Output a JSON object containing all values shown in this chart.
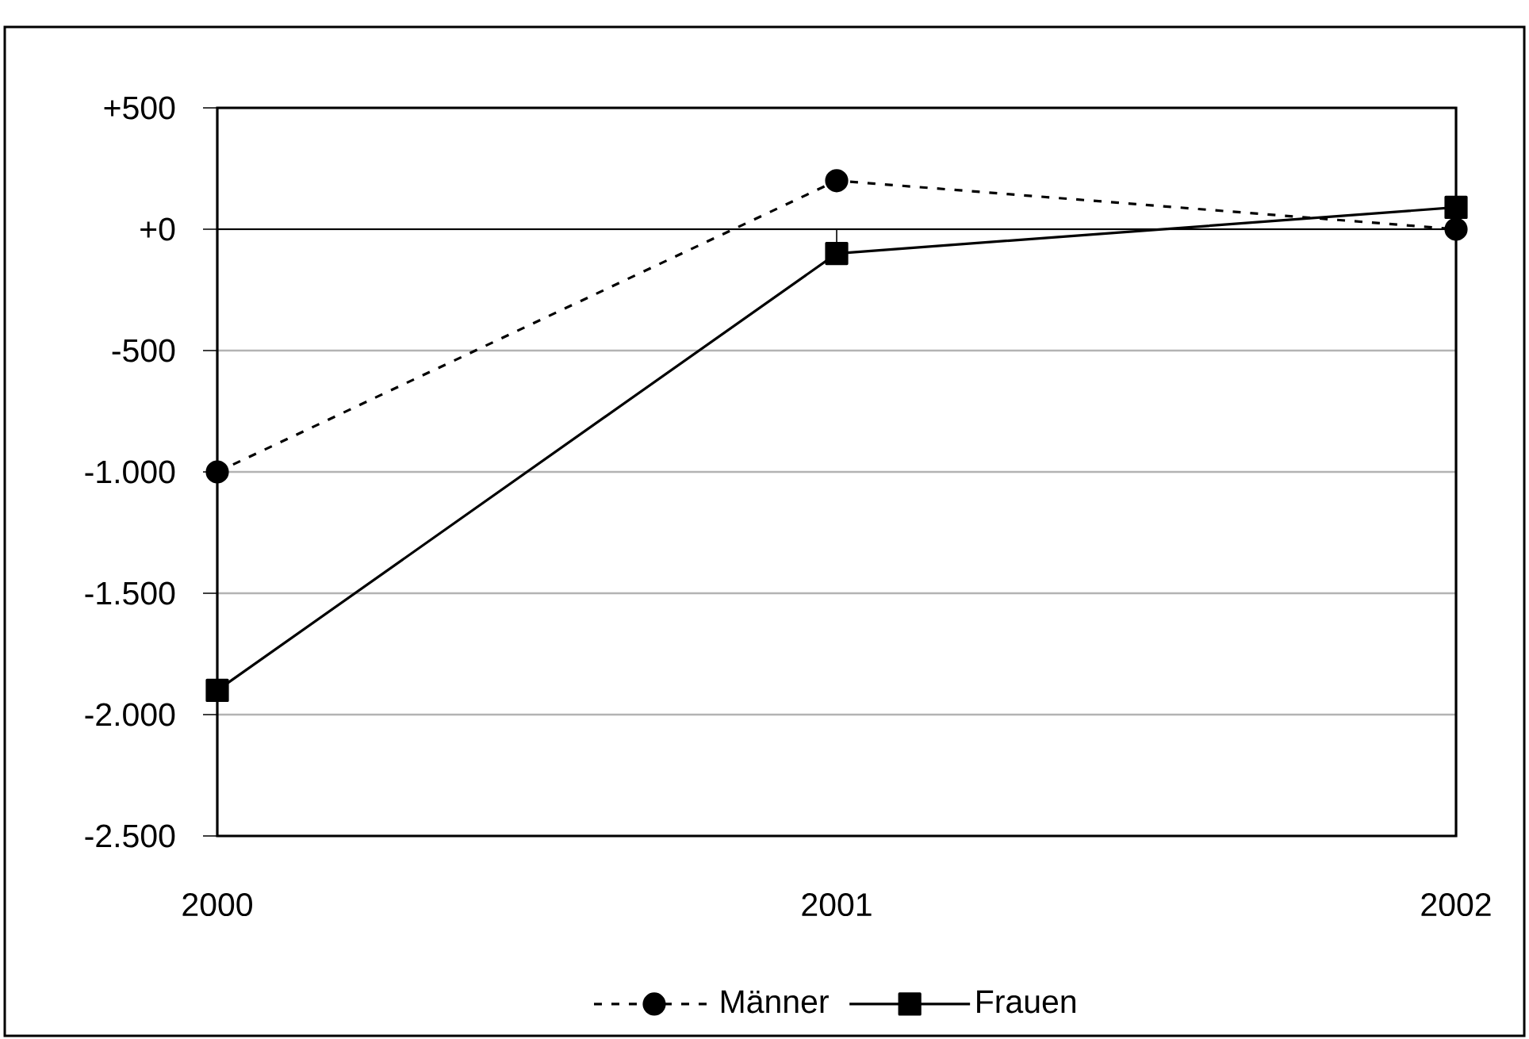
{
  "chart_data": {
    "type": "line",
    "categories": [
      "2000",
      "2001",
      "2002"
    ],
    "series": [
      {
        "name": "Männer",
        "color": "#000000",
        "values": [
          -1000,
          200,
          0
        ],
        "marker": "circle",
        "line_style": "dashed"
      },
      {
        "name": "Frauen",
        "color": "#000000",
        "values": [
          -1900,
          -100,
          90
        ],
        "marker": "square",
        "line_style": "solid"
      }
    ],
    "ylim": [
      -2500,
      500
    ],
    "yticks": [
      {
        "value": 500,
        "label": "+500"
      },
      {
        "value": 0,
        "label": "+0"
      },
      {
        "value": -500,
        "label": "-500"
      },
      {
        "value": -1000,
        "label": "-1.000"
      },
      {
        "value": -1500,
        "label": "-1.500"
      },
      {
        "value": -2000,
        "label": "-2.000"
      },
      {
        "value": -2500,
        "label": "-2.500"
      }
    ],
    "grid": "y",
    "legend": "bottom"
  }
}
